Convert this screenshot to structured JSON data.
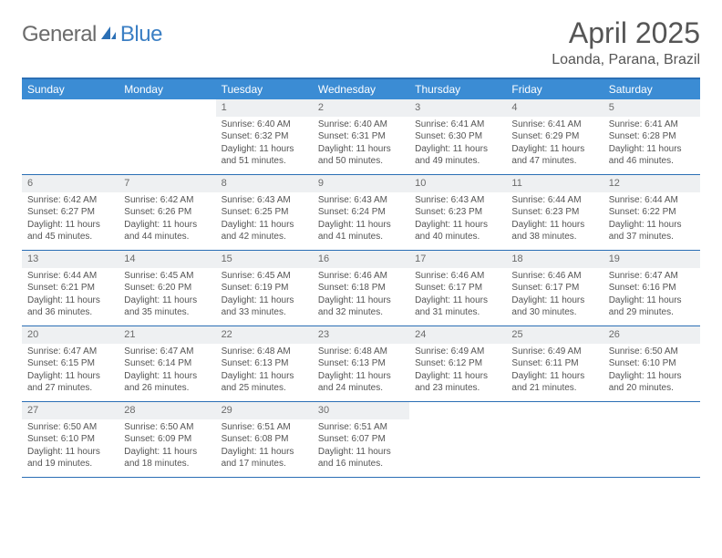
{
  "brand": {
    "name1": "General",
    "name2": "Blue"
  },
  "title": "April 2025",
  "location": "Loanda, Parana, Brazil",
  "colors": {
    "header_bg": "#3b8cd4",
    "header_border": "#2b6fb5",
    "daynum_bg": "#eef0f2",
    "text": "#545454",
    "title_text": "#555"
  },
  "day_headers": [
    "Sunday",
    "Monday",
    "Tuesday",
    "Wednesday",
    "Thursday",
    "Friday",
    "Saturday"
  ],
  "weeks": [
    [
      null,
      null,
      {
        "n": "1",
        "sr": "Sunrise: 6:40 AM",
        "ss": "Sunset: 6:32 PM",
        "dl": "Daylight: 11 hours and 51 minutes."
      },
      {
        "n": "2",
        "sr": "Sunrise: 6:40 AM",
        "ss": "Sunset: 6:31 PM",
        "dl": "Daylight: 11 hours and 50 minutes."
      },
      {
        "n": "3",
        "sr": "Sunrise: 6:41 AM",
        "ss": "Sunset: 6:30 PM",
        "dl": "Daylight: 11 hours and 49 minutes."
      },
      {
        "n": "4",
        "sr": "Sunrise: 6:41 AM",
        "ss": "Sunset: 6:29 PM",
        "dl": "Daylight: 11 hours and 47 minutes."
      },
      {
        "n": "5",
        "sr": "Sunrise: 6:41 AM",
        "ss": "Sunset: 6:28 PM",
        "dl": "Daylight: 11 hours and 46 minutes."
      }
    ],
    [
      {
        "n": "6",
        "sr": "Sunrise: 6:42 AM",
        "ss": "Sunset: 6:27 PM",
        "dl": "Daylight: 11 hours and 45 minutes."
      },
      {
        "n": "7",
        "sr": "Sunrise: 6:42 AM",
        "ss": "Sunset: 6:26 PM",
        "dl": "Daylight: 11 hours and 44 minutes."
      },
      {
        "n": "8",
        "sr": "Sunrise: 6:43 AM",
        "ss": "Sunset: 6:25 PM",
        "dl": "Daylight: 11 hours and 42 minutes."
      },
      {
        "n": "9",
        "sr": "Sunrise: 6:43 AM",
        "ss": "Sunset: 6:24 PM",
        "dl": "Daylight: 11 hours and 41 minutes."
      },
      {
        "n": "10",
        "sr": "Sunrise: 6:43 AM",
        "ss": "Sunset: 6:23 PM",
        "dl": "Daylight: 11 hours and 40 minutes."
      },
      {
        "n": "11",
        "sr": "Sunrise: 6:44 AM",
        "ss": "Sunset: 6:23 PM",
        "dl": "Daylight: 11 hours and 38 minutes."
      },
      {
        "n": "12",
        "sr": "Sunrise: 6:44 AM",
        "ss": "Sunset: 6:22 PM",
        "dl": "Daylight: 11 hours and 37 minutes."
      }
    ],
    [
      {
        "n": "13",
        "sr": "Sunrise: 6:44 AM",
        "ss": "Sunset: 6:21 PM",
        "dl": "Daylight: 11 hours and 36 minutes."
      },
      {
        "n": "14",
        "sr": "Sunrise: 6:45 AM",
        "ss": "Sunset: 6:20 PM",
        "dl": "Daylight: 11 hours and 35 minutes."
      },
      {
        "n": "15",
        "sr": "Sunrise: 6:45 AM",
        "ss": "Sunset: 6:19 PM",
        "dl": "Daylight: 11 hours and 33 minutes."
      },
      {
        "n": "16",
        "sr": "Sunrise: 6:46 AM",
        "ss": "Sunset: 6:18 PM",
        "dl": "Daylight: 11 hours and 32 minutes."
      },
      {
        "n": "17",
        "sr": "Sunrise: 6:46 AM",
        "ss": "Sunset: 6:17 PM",
        "dl": "Daylight: 11 hours and 31 minutes."
      },
      {
        "n": "18",
        "sr": "Sunrise: 6:46 AM",
        "ss": "Sunset: 6:17 PM",
        "dl": "Daylight: 11 hours and 30 minutes."
      },
      {
        "n": "19",
        "sr": "Sunrise: 6:47 AM",
        "ss": "Sunset: 6:16 PM",
        "dl": "Daylight: 11 hours and 29 minutes."
      }
    ],
    [
      {
        "n": "20",
        "sr": "Sunrise: 6:47 AM",
        "ss": "Sunset: 6:15 PM",
        "dl": "Daylight: 11 hours and 27 minutes."
      },
      {
        "n": "21",
        "sr": "Sunrise: 6:47 AM",
        "ss": "Sunset: 6:14 PM",
        "dl": "Daylight: 11 hours and 26 minutes."
      },
      {
        "n": "22",
        "sr": "Sunrise: 6:48 AM",
        "ss": "Sunset: 6:13 PM",
        "dl": "Daylight: 11 hours and 25 minutes."
      },
      {
        "n": "23",
        "sr": "Sunrise: 6:48 AM",
        "ss": "Sunset: 6:13 PM",
        "dl": "Daylight: 11 hours and 24 minutes."
      },
      {
        "n": "24",
        "sr": "Sunrise: 6:49 AM",
        "ss": "Sunset: 6:12 PM",
        "dl": "Daylight: 11 hours and 23 minutes."
      },
      {
        "n": "25",
        "sr": "Sunrise: 6:49 AM",
        "ss": "Sunset: 6:11 PM",
        "dl": "Daylight: 11 hours and 21 minutes."
      },
      {
        "n": "26",
        "sr": "Sunrise: 6:50 AM",
        "ss": "Sunset: 6:10 PM",
        "dl": "Daylight: 11 hours and 20 minutes."
      }
    ],
    [
      {
        "n": "27",
        "sr": "Sunrise: 6:50 AM",
        "ss": "Sunset: 6:10 PM",
        "dl": "Daylight: 11 hours and 19 minutes."
      },
      {
        "n": "28",
        "sr": "Sunrise: 6:50 AM",
        "ss": "Sunset: 6:09 PM",
        "dl": "Daylight: 11 hours and 18 minutes."
      },
      {
        "n": "29",
        "sr": "Sunrise: 6:51 AM",
        "ss": "Sunset: 6:08 PM",
        "dl": "Daylight: 11 hours and 17 minutes."
      },
      {
        "n": "30",
        "sr": "Sunrise: 6:51 AM",
        "ss": "Sunset: 6:07 PM",
        "dl": "Daylight: 11 hours and 16 minutes."
      },
      null,
      null,
      null
    ]
  ]
}
